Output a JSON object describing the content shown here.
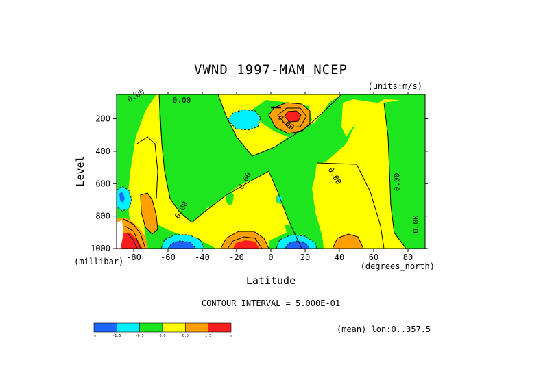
{
  "title": "VWND_1997-MAM_NCEP",
  "units_label": "(units:m/s)",
  "contour_interval_label": "CONTOUR INTERVAL = 5.000E-01",
  "mean_label": "(mean) lon:0..357.5",
  "chart_data": {
    "type": "heatmap",
    "title": "VWND_1997-MAM_NCEP",
    "xlabel": "Latitude",
    "ylabel": "Level",
    "x_unit_label": "(degrees_north)",
    "y_unit_label": "(millibar)",
    "xlim": [
      -90,
      90
    ],
    "ylim": [
      1000,
      50
    ],
    "y_inverted": true,
    "x_ticks": [
      -80,
      -60,
      -40,
      -20,
      0,
      20,
      40,
      60,
      80
    ],
    "y_ticks": [
      200,
      400,
      600,
      800,
      1000
    ],
    "contour_interval": 0.5,
    "colorbar": {
      "levels": [
        {
          "label": "-∞",
          "value": null
        },
        {
          "label": "-1.5",
          "value": -1.5
        },
        {
          "label": "-0.5",
          "value": -0.5
        },
        {
          "label": "0.0",
          "value": 0.0
        },
        {
          "label": "0.5",
          "value": 0.5
        },
        {
          "label": "1.5",
          "value": 1.5
        },
        {
          "label": "∞",
          "value": null
        }
      ],
      "colors": [
        "#1e64ff",
        "#00f0ff",
        "#1ee61e",
        "#ffff00",
        "#ffa000",
        "#ff1e1e"
      ]
    },
    "contour_labels": [
      {
        "text": "0.00",
        "lat": -78,
        "lev": 70,
        "angle": -30
      },
      {
        "text": "0.00",
        "lat": -52,
        "lev": 100,
        "angle": 0
      },
      {
        "text": "0.00",
        "lat": 8,
        "lev": 235,
        "angle": 40
      },
      {
        "text": "0.00",
        "lat": -14,
        "lev": 590,
        "angle": -60
      },
      {
        "text": "0.00",
        "lat": 36,
        "lev": 560,
        "angle": 60
      },
      {
        "text": "0.00",
        "lat": 75,
        "lev": 590,
        "angle": -90
      },
      {
        "text": "0.00",
        "lat": -51,
        "lev": 770,
        "angle": -60
      },
      {
        "text": "0.00",
        "lat": 86,
        "lev": 850,
        "angle": -90
      }
    ],
    "features": [
      {
        "kind": "positive_jet",
        "lat": 13,
        "lev": 140,
        "peak": 2.0
      },
      {
        "kind": "negative_max",
        "lat": -19,
        "lev": 150,
        "peak": -1.0
      },
      {
        "kind": "negative_max",
        "lat": -56,
        "lev": 990,
        "peak": -2.0
      },
      {
        "kind": "positive_max",
        "lat": -17,
        "lev": 990,
        "peak": 2.0
      },
      {
        "kind": "negative_max",
        "lat": 14,
        "lev": 990,
        "peak": -2.0
      },
      {
        "kind": "positive_max",
        "lat": 45,
        "lev": 985,
        "peak": 1.0
      },
      {
        "kind": "positive_max",
        "lat": -88,
        "lev": 990,
        "peak": 2.5
      }
    ]
  }
}
